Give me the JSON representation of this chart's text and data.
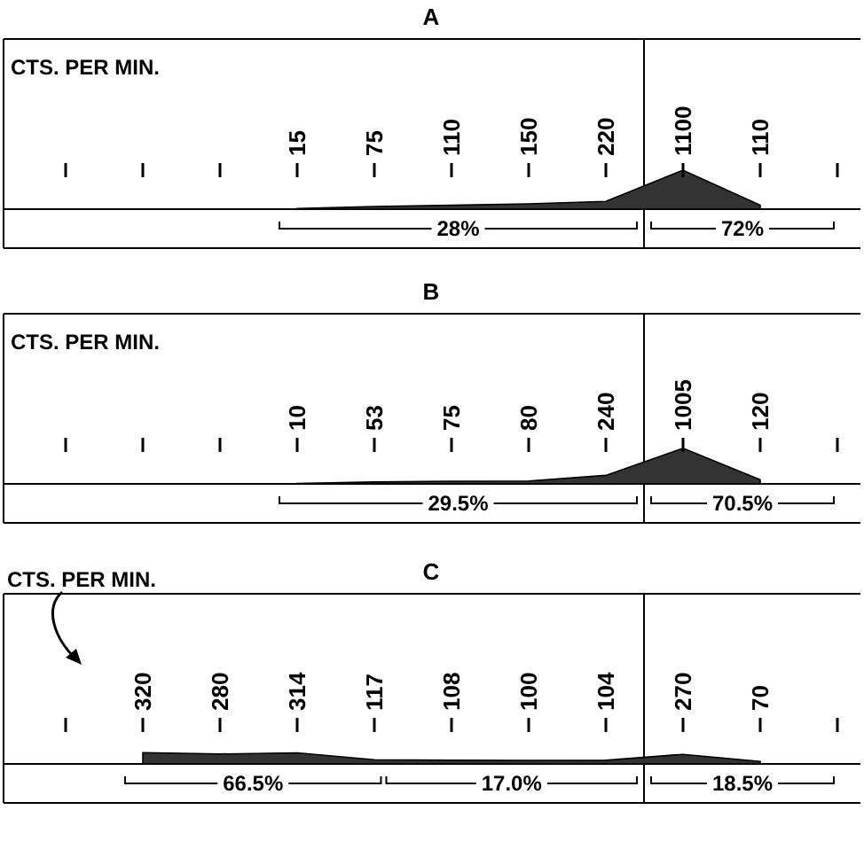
{
  "chart_data": [
    {
      "type": "area",
      "title": "A",
      "categories": [
        null,
        null,
        null,
        null,
        null,
        null,
        null,
        null,
        null,
        null,
        null
      ],
      "values": [
        null,
        null,
        null,
        15,
        75,
        110,
        150,
        220,
        1100,
        110,
        null
      ],
      "color": "#333333",
      "data_labels": true,
      "annotations": [
        "CTS. PER MIN.",
        "28%",
        "72%"
      ]
    },
    {
      "type": "area",
      "title": "B",
      "categories": [
        null,
        null,
        null,
        null,
        null,
        null,
        null,
        null,
        null,
        null,
        null
      ],
      "values": [
        null,
        null,
        null,
        10,
        53,
        75,
        80,
        240,
        1005,
        120,
        null
      ],
      "color": "#333333",
      "data_labels": true,
      "annotations": [
        "CTS. PER MIN.",
        "29.5%",
        "70.5%"
      ]
    },
    {
      "type": "area",
      "title": "C",
      "categories": [
        null,
        null,
        null,
        null,
        null,
        null,
        null,
        null,
        null,
        null,
        null
      ],
      "values": [
        null,
        320,
        280,
        314,
        117,
        108,
        100,
        104,
        270,
        70,
        null
      ],
      "color": "#333333",
      "data_labels": true,
      "annotations": [
        "CTS. PER MIN.",
        "66.5%",
        "17.0%",
        "18.5%"
      ]
    }
  ]
}
